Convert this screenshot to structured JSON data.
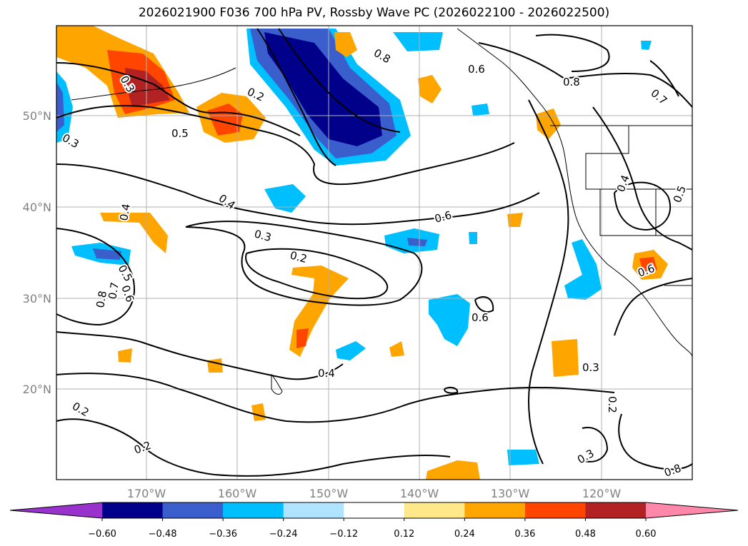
{
  "title": "2026021900 F036 700 hPa PV, Rossby Wave PC (2026022100 - 2026022500)",
  "lat_labels": [
    "50°N",
    "40°N",
    "30°N",
    "20°N"
  ],
  "lon_labels": [
    "170°W",
    "160°W",
    "150°W",
    "140°W",
    "130°W",
    "120°W"
  ],
  "contour_labels": [
    "0.3",
    "0.8",
    "0.6",
    "0.8",
    "0.7",
    "0.2",
    "0.5",
    "0.3",
    "0.4",
    "0.4",
    "0.3",
    "0.6",
    "0.2",
    "0.5",
    "0.6",
    "0.8",
    "0.7",
    "0.6",
    "0.6",
    "0.3",
    "0.4",
    "0.2",
    "0.2",
    "0.3",
    "0.2",
    "0.4",
    "0.5",
    "0.8"
  ],
  "colorbar": {
    "ticks": [
      "−0.60",
      "−0.48",
      "−0.36",
      "−0.24",
      "−0.12",
      "0.12",
      "0.24",
      "0.36",
      "0.48",
      "0.60"
    ],
    "colors": [
      "#9932cc",
      "#00008b",
      "#3a5fcd",
      "#00bfff",
      "#afe3ff",
      "#ffffff",
      "#ffe88a",
      "#ffa500",
      "#ff4500",
      "#b22222",
      "#ff88aa"
    ]
  }
}
